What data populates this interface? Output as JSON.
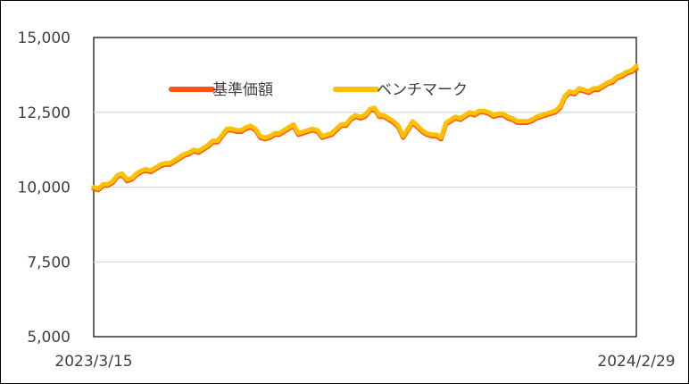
{
  "chart_data": {
    "type": "line",
    "title": "",
    "xlabel": "",
    "ylabel": "",
    "x_tick_labels": [
      "2023/3/15",
      "2024/2/29"
    ],
    "y_tick_labels": [
      "15,000",
      "12,500",
      "10,000",
      "7,500",
      "5,000"
    ],
    "y_ticks": [
      15000,
      12500,
      10000,
      7500,
      5000
    ],
    "ylim": [
      5000,
      15000
    ],
    "grid": true,
    "legend_position": "top-left",
    "series": [
      {
        "name": "基準価額",
        "color": "#FF5310",
        "values": [
          9950,
          9900,
          10050,
          10050,
          10150,
          10350,
          10400,
          10200,
          10250,
          10400,
          10500,
          10550,
          10500,
          10600,
          10700,
          10750,
          10750,
          10850,
          10950,
          11050,
          11100,
          11200,
          11150,
          11250,
          11350,
          11500,
          11500,
          11700,
          11900,
          11900,
          11850,
          11850,
          11950,
          12000,
          11900,
          11650,
          11600,
          11650,
          11750,
          11750,
          11850,
          11950,
          12050,
          11750,
          11800,
          11850,
          11900,
          11850,
          11650,
          11700,
          11750,
          11900,
          12050,
          12050,
          12250,
          12350,
          12300,
          12350,
          12550,
          12600,
          12350,
          12350,
          12250,
          12150,
          12000,
          11650,
          11900,
          12150,
          12000,
          11850,
          11750,
          11700,
          11700,
          11600,
          12100,
          12200,
          12300,
          12250,
          12350,
          12450,
          12400,
          12500,
          12500,
          12450,
          12350,
          12400,
          12400,
          12300,
          12250,
          12150,
          12150,
          12150,
          12200,
          12300,
          12350,
          12400,
          12450,
          12500,
          12650,
          13000,
          13150,
          13100,
          13250,
          13200,
          13150,
          13250,
          13250,
          13350,
          13450,
          13500,
          13650,
          13700,
          13800,
          13850,
          13950
        ]
      },
      {
        "name": "ベンチマーク",
        "color": "#FFC000",
        "values": [
          10000,
          9950,
          10100,
          10100,
          10200,
          10400,
          10450,
          10250,
          10300,
          10450,
          10550,
          10600,
          10550,
          10650,
          10750,
          10800,
          10800,
          10900,
          11000,
          11100,
          11150,
          11250,
          11200,
          11300,
          11400,
          11550,
          11550,
          11750,
          11950,
          11950,
          11900,
          11900,
          12000,
          12050,
          11950,
          11700,
          11650,
          11700,
          11800,
          11800,
          11900,
          12000,
          12100,
          11800,
          11850,
          11900,
          11950,
          11900,
          11700,
          11750,
          11800,
          11950,
          12100,
          12100,
          12300,
          12400,
          12350,
          12400,
          12600,
          12650,
          12400,
          12400,
          12300,
          12200,
          12050,
          11700,
          11950,
          12200,
          12050,
          11900,
          11800,
          11750,
          11750,
          11650,
          12150,
          12250,
          12350,
          12300,
          12400,
          12500,
          12450,
          12550,
          12550,
          12500,
          12400,
          12450,
          12450,
          12350,
          12300,
          12200,
          12200,
          12200,
          12250,
          12350,
          12400,
          12450,
          12500,
          12550,
          12700,
          13050,
          13200,
          13150,
          13300,
          13250,
          13200,
          13300,
          13300,
          13400,
          13500,
          13550,
          13700,
          13750,
          13850,
          13900,
          14050
        ]
      }
    ]
  }
}
